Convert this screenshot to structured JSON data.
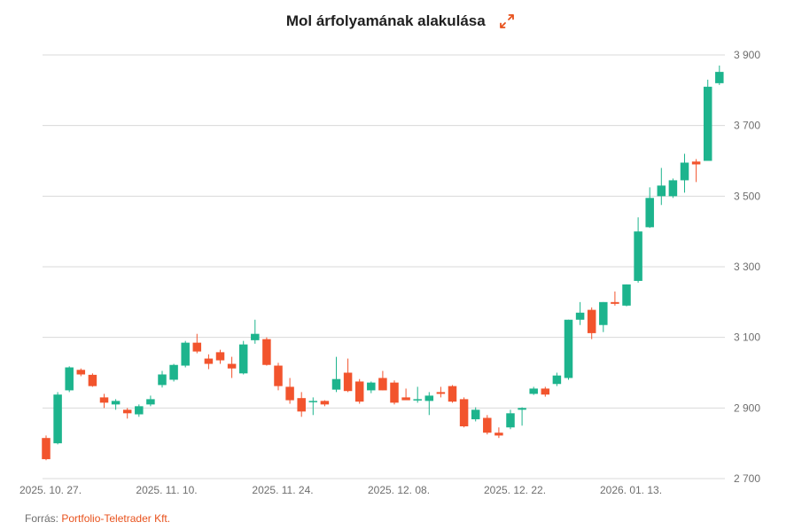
{
  "chart_data": {
    "type": "candlestick",
    "title": "Mol árfolyamának alakulása",
    "xlabel": "",
    "ylabel": "",
    "ylim": [
      2700,
      3950
    ],
    "yticks": [
      2700,
      2900,
      3100,
      3300,
      3500,
      3700,
      3900
    ],
    "ytick_labels": [
      "2 700",
      "2 900",
      "3 100",
      "3 300",
      "3 500",
      "3 700",
      "3 900"
    ],
    "xtick_labels": [
      {
        "label": "2025. 10. 27.",
        "index": 0
      },
      {
        "label": "2025. 11. 10.",
        "index": 10
      },
      {
        "label": "2025. 11. 24.",
        "index": 20
      },
      {
        "label": "2025. 12. 08.",
        "index": 30
      },
      {
        "label": "2025. 12. 22.",
        "index": 40
      },
      {
        "label": "2026. 01. 13.",
        "index": 50
      }
    ],
    "series": [
      {
        "name": "Mol",
        "ohlc": [
          [
            2815,
            2822,
            2752,
            2755
          ],
          [
            2800,
            2945,
            2797,
            2938
          ],
          [
            2950,
            3018,
            2945,
            3015
          ],
          [
            3008,
            3012,
            2990,
            2995
          ],
          [
            2994,
            2998,
            2960,
            2962
          ],
          [
            2930,
            2940,
            2900,
            2915
          ],
          [
            2910,
            2925,
            2895,
            2920
          ],
          [
            2895,
            2900,
            2870,
            2885
          ],
          [
            2882,
            2910,
            2875,
            2905
          ],
          [
            2910,
            2935,
            2905,
            2925
          ],
          [
            2965,
            3005,
            2958,
            2995
          ],
          [
            2980,
            3025,
            2975,
            3022
          ],
          [
            3020,
            3090,
            3015,
            3085
          ],
          [
            3085,
            3110,
            3055,
            3060
          ],
          [
            3040,
            3052,
            3010,
            3025
          ],
          [
            3058,
            3065,
            3025,
            3035
          ],
          [
            3025,
            3045,
            2985,
            3012
          ],
          [
            2998,
            3090,
            2995,
            3080
          ],
          [
            3092,
            3150,
            3082,
            3110
          ],
          [
            3095,
            3100,
            3020,
            3022
          ],
          [
            3020,
            3028,
            2950,
            2962
          ],
          [
            2960,
            2985,
            2912,
            2922
          ],
          [
            2928,
            2945,
            2875,
            2890
          ],
          [
            2920,
            2930,
            2880,
            2920
          ],
          [
            2920,
            2922,
            2905,
            2910
          ],
          [
            2952,
            3045,
            2945,
            2982
          ],
          [
            3000,
            3040,
            2945,
            2948
          ],
          [
            2975,
            2982,
            2912,
            2918
          ],
          [
            2950,
            2975,
            2942,
            2972
          ],
          [
            2985,
            3005,
            2950,
            2950
          ],
          [
            2972,
            2978,
            2910,
            2915
          ],
          [
            2930,
            2955,
            2925,
            2922
          ],
          [
            2925,
            2960,
            2915,
            2925
          ],
          [
            2920,
            2945,
            2880,
            2935
          ],
          [
            2945,
            2960,
            2930,
            2940
          ],
          [
            2962,
            2965,
            2915,
            2918
          ],
          [
            2925,
            2930,
            2845,
            2848
          ],
          [
            2868,
            2902,
            2862,
            2895
          ],
          [
            2872,
            2880,
            2825,
            2830
          ],
          [
            2830,
            2845,
            2815,
            2822
          ],
          [
            2845,
            2895,
            2840,
            2885
          ],
          [
            2895,
            2902,
            2850,
            2900
          ],
          [
            2940,
            2960,
            2937,
            2955
          ],
          [
            2955,
            2960,
            2932,
            2938
          ],
          [
            2968,
            3000,
            2962,
            2992
          ],
          [
            2985,
            3150,
            2980,
            3150
          ],
          [
            3150,
            3200,
            3135,
            3170
          ],
          [
            3178,
            3185,
            3095,
            3112
          ],
          [
            3135,
            3200,
            3115,
            3200
          ],
          [
            3200,
            3230,
            3190,
            3195
          ],
          [
            3190,
            3250,
            3188,
            3250
          ],
          [
            3260,
            3440,
            3255,
            3400
          ],
          [
            3412,
            3525,
            3410,
            3495
          ],
          [
            3500,
            3580,
            3475,
            3530
          ],
          [
            3500,
            3550,
            3495,
            3545
          ],
          [
            3545,
            3620,
            3510,
            3595
          ],
          [
            3598,
            3605,
            3540,
            3590
          ],
          [
            3600,
            3830,
            3600,
            3810
          ],
          [
            3820,
            3870,
            3815,
            3852
          ]
        ]
      }
    ],
    "up_color": "#1db48d",
    "down_color": "#f2542d",
    "source_prefix": "Forrás:",
    "source_name": "Portfolio-Teletrader Kft."
  }
}
